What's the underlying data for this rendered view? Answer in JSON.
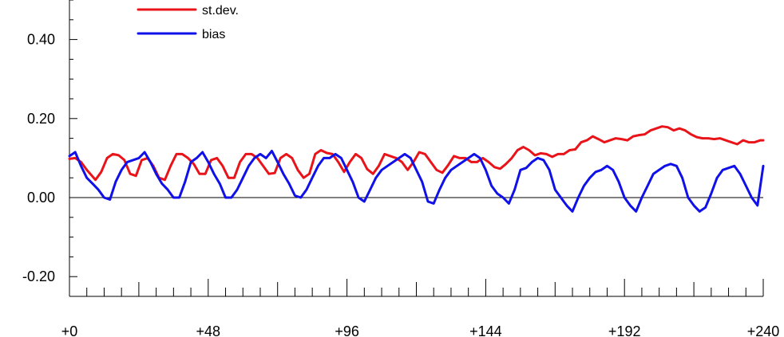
{
  "chart_data": {
    "type": "line",
    "title": "",
    "xlabel": "",
    "ylabel": "",
    "xlim": [
      0,
      240
    ],
    "ylim": [
      -0.25,
      0.5
    ],
    "x_major_ticks": [
      0,
      48,
      96,
      144,
      192,
      240
    ],
    "x_tick_labels": [
      "+0",
      "+48",
      "+96",
      "+144",
      "+192",
      "+240"
    ],
    "y_major_ticks": [
      -0.2,
      0.0,
      0.2,
      0.4
    ],
    "y_tick_labels": [
      "-0.20",
      "0.00",
      "0.20",
      "0.40"
    ],
    "zero_line": true,
    "grid": false,
    "legend_position": "top-left",
    "series": [
      {
        "name": "st.dev.",
        "color": "#e8141a",
        "x": [
          0,
          2,
          4,
          6,
          9,
          11,
          13,
          15,
          17,
          19,
          21,
          23,
          25,
          27,
          29,
          31,
          33,
          35,
          37,
          39,
          41,
          43,
          45,
          47,
          49,
          51,
          53,
          55,
          57,
          59,
          61,
          63,
          65,
          67,
          69,
          71,
          73,
          75,
          77,
          79,
          81,
          83,
          85,
          87,
          89,
          91,
          93,
          95,
          97,
          99,
          101,
          103,
          105,
          107,
          109,
          111,
          113,
          115,
          117,
          119,
          121,
          123,
          125,
          127,
          129,
          131,
          133,
          135,
          137,
          139,
          141,
          143,
          145,
          147,
          149,
          151,
          153,
          155,
          157,
          159,
          161,
          163,
          165,
          167,
          169,
          171,
          173,
          175,
          177,
          179,
          181,
          183,
          185,
          187,
          189,
          191,
          193,
          195,
          197,
          199,
          201,
          203,
          205,
          207,
          209,
          211,
          213,
          215,
          217,
          219,
          221,
          223,
          225,
          227,
          229,
          231,
          233,
          235,
          237,
          239,
          240
        ],
        "y": [
          0.098,
          0.1,
          0.09,
          0.07,
          0.045,
          0.065,
          0.1,
          0.11,
          0.107,
          0.095,
          0.06,
          0.055,
          0.095,
          0.1,
          0.08,
          0.05,
          0.045,
          0.08,
          0.11,
          0.11,
          0.1,
          0.085,
          0.06,
          0.06,
          0.095,
          0.1,
          0.08,
          0.05,
          0.05,
          0.09,
          0.11,
          0.11,
          0.1,
          0.08,
          0.06,
          0.062,
          0.1,
          0.11,
          0.1,
          0.07,
          0.05,
          0.06,
          0.11,
          0.12,
          0.113,
          0.11,
          0.09,
          0.065,
          0.09,
          0.11,
          0.1,
          0.072,
          0.06,
          0.08,
          0.11,
          0.105,
          0.1,
          0.09,
          0.07,
          0.09,
          0.115,
          0.11,
          0.09,
          0.07,
          0.063,
          0.082,
          0.105,
          0.1,
          0.1,
          0.09,
          0.09,
          0.1,
          0.09,
          0.077,
          0.073,
          0.085,
          0.1,
          0.12,
          0.128,
          0.12,
          0.107,
          0.112,
          0.11,
          0.103,
          0.11,
          0.11,
          0.12,
          0.122,
          0.14,
          0.145,
          0.155,
          0.148,
          0.14,
          0.145,
          0.15,
          0.148,
          0.145,
          0.155,
          0.158,
          0.16,
          0.17,
          0.175,
          0.18,
          0.178,
          0.17,
          0.175,
          0.17,
          0.16,
          0.153,
          0.15,
          0.15,
          0.148,
          0.15,
          0.145,
          0.14,
          0.135,
          0.145,
          0.14,
          0.14,
          0.145,
          0.145
        ]
      },
      {
        "name": "bias",
        "color": "#1010e8",
        "x": [
          0,
          2,
          4,
          6,
          8,
          10,
          12,
          14,
          16,
          18,
          20,
          22,
          24,
          26,
          28,
          30,
          32,
          34,
          36,
          38,
          40,
          42,
          44,
          46,
          48,
          50,
          52,
          54,
          56,
          58,
          60,
          62,
          64,
          66,
          68,
          70,
          72,
          74,
          76,
          78,
          80,
          82,
          84,
          86,
          88,
          90,
          92,
          94,
          96,
          98,
          100,
          102,
          104,
          106,
          108,
          110,
          112,
          114,
          116,
          118,
          120,
          122,
          124,
          126,
          128,
          130,
          132,
          134,
          136,
          138,
          140,
          142,
          144,
          146,
          148,
          150,
          152,
          154,
          156,
          158,
          160,
          162,
          164,
          166,
          168,
          170,
          172,
          174,
          176,
          178,
          180,
          182,
          184,
          186,
          188,
          190,
          192,
          194,
          196,
          198,
          200,
          202,
          204,
          206,
          208,
          210,
          212,
          214,
          216,
          218,
          220,
          222,
          224,
          226,
          228,
          230,
          232,
          234,
          236,
          238,
          240
        ],
        "y": [
          0.105,
          0.115,
          0.08,
          0.05,
          0.035,
          0.02,
          0.0,
          -0.005,
          0.04,
          0.07,
          0.09,
          0.095,
          0.1,
          0.115,
          0.09,
          0.06,
          0.035,
          0.02,
          0.0,
          0.0,
          0.04,
          0.09,
          0.1,
          0.115,
          0.09,
          0.06,
          0.035,
          0.0,
          0.0,
          0.02,
          0.05,
          0.08,
          0.1,
          0.11,
          0.1,
          0.118,
          0.09,
          0.06,
          0.035,
          0.005,
          0.0,
          0.02,
          0.05,
          0.08,
          0.1,
          0.1,
          0.11,
          0.1,
          0.07,
          0.04,
          0.0,
          -0.01,
          0.02,
          0.05,
          0.07,
          0.08,
          0.09,
          0.1,
          0.11,
          0.1,
          0.07,
          0.04,
          -0.01,
          -0.015,
          0.02,
          0.05,
          0.07,
          0.08,
          0.09,
          0.1,
          0.11,
          0.1,
          0.07,
          0.03,
          0.01,
          0.0,
          -0.015,
          0.02,
          0.07,
          0.075,
          0.09,
          0.1,
          0.095,
          0.07,
          0.02,
          0.0,
          -0.02,
          -0.035,
          0.0,
          0.03,
          0.05,
          0.065,
          0.07,
          0.08,
          0.07,
          0.04,
          0.0,
          -0.02,
          -0.035,
          0.0,
          0.03,
          0.06,
          0.07,
          0.08,
          0.085,
          0.08,
          0.05,
          0.0,
          -0.02,
          -0.035,
          -0.025,
          0.01,
          0.05,
          0.07,
          0.075,
          0.08,
          0.06,
          0.03,
          0.0,
          -0.02,
          0.08
        ]
      }
    ]
  }
}
